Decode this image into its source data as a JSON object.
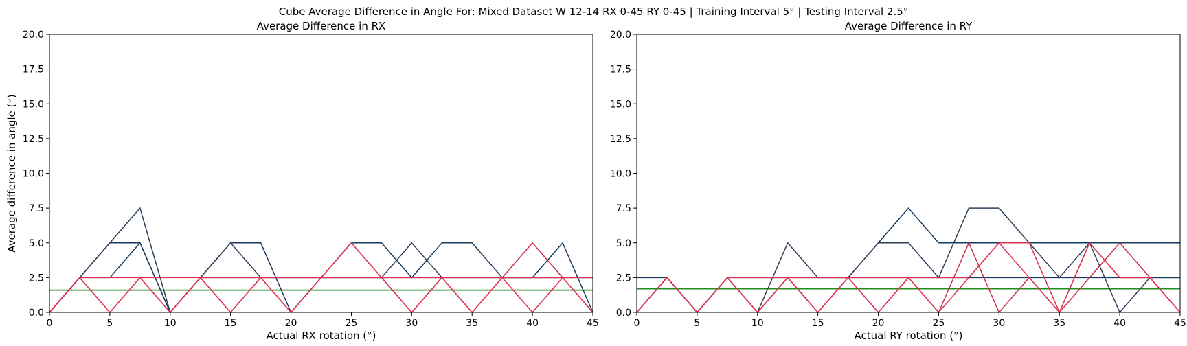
{
  "figure": {
    "suptitle": "Cube Average Difference in Angle For: Mixed Dataset W 12-14 RX 0-45 RY 0-45 | Training Interval 5° | Testing Interval 2.5°"
  },
  "colors": {
    "reference_line": "#228b22",
    "navy": "#17395c",
    "dark_slate": "#2c3e57",
    "red": "#e03050",
    "crimson": "#c72c48"
  },
  "chart_data": [
    {
      "type": "line",
      "title": "Average Difference in RX",
      "xlabel": "Actual RX rotation (°)",
      "ylabel": "Average difference in angle (°)",
      "xlim": [
        0,
        45
      ],
      "ylim": [
        0,
        20
      ],
      "x_ticks": [
        "0",
        "5",
        "10",
        "15",
        "20",
        "25",
        "30",
        "35",
        "40",
        "45"
      ],
      "y_ticks": [
        "0.0",
        "2.5",
        "5.0",
        "7.5",
        "10.0",
        "12.5",
        "15.0",
        "17.5",
        "20.0"
      ],
      "grid": false,
      "x": [
        0,
        2.5,
        5,
        7.5,
        10,
        12.5,
        15,
        17.5,
        20,
        22.5,
        25,
        27.5,
        30,
        32.5,
        35,
        37.5,
        40,
        42.5,
        45
      ],
      "reference_line": 1.6,
      "series": [
        {
          "color": "#17395c",
          "values": [
            0,
            2.5,
            5,
            5,
            0,
            2.5,
            5,
            5,
            0,
            2.5,
            5,
            5,
            2.5,
            5,
            5,
            2.5,
            2.5,
            5,
            0
          ]
        },
        {
          "color": "#2c3e57",
          "values": [
            0,
            2.5,
            5,
            7.5,
            0,
            2.5,
            5,
            2.5,
            2.5,
            2.5,
            2.5,
            2.5,
            5,
            2.5,
            2.5,
            2.5,
            2.5,
            2.5,
            2.5
          ]
        },
        {
          "color": "#17395c",
          "values": [
            0,
            2.5,
            2.5,
            5,
            0,
            2.5,
            2.5,
            2.5,
            2.5,
            2.5,
            2.5,
            2.5,
            2.5,
            2.5,
            2.5,
            2.5,
            2.5,
            2.5,
            2.5
          ]
        },
        {
          "color": "#e03050",
          "values": [
            0,
            2.5,
            2.5,
            2.5,
            2.5,
            2.5,
            2.5,
            2.5,
            2.5,
            2.5,
            2.5,
            2.5,
            2.5,
            2.5,
            2.5,
            2.5,
            2.5,
            2.5,
            2.5
          ]
        },
        {
          "color": "#c72c48",
          "values": [
            0,
            2.5,
            0,
            2.5,
            0,
            2.5,
            0,
            2.5,
            0,
            2.5,
            5,
            2.5,
            0,
            2.5,
            0,
            2.5,
            5,
            2.5,
            0
          ]
        },
        {
          "color": "#e03050",
          "values": [
            0,
            2.5,
            0,
            2.5,
            0,
            2.5,
            0,
            2.5,
            0,
            2.5,
            5,
            2.5,
            0,
            2.5,
            0,
            2.5,
            0,
            2.5,
            0
          ]
        }
      ]
    },
    {
      "type": "line",
      "title": "Average Difference in RY",
      "xlabel": "Actual RY rotation (°)",
      "ylabel": "",
      "xlim": [
        0,
        45
      ],
      "ylim": [
        0,
        20
      ],
      "x_ticks": [
        "0",
        "5",
        "10",
        "15",
        "20",
        "25",
        "30",
        "35",
        "40",
        "45"
      ],
      "y_ticks": [
        "0.0",
        "2.5",
        "5.0",
        "7.5",
        "10.0",
        "12.5",
        "15.0",
        "17.5",
        "20.0"
      ],
      "grid": false,
      "x": [
        0,
        2.5,
        5,
        7.5,
        10,
        12.5,
        15,
        17.5,
        20,
        22.5,
        25,
        27.5,
        30,
        32.5,
        35,
        37.5,
        40,
        42.5,
        45
      ],
      "reference_line": 1.7,
      "series": [
        {
          "color": "#17395c",
          "values": [
            2.5,
            2.5,
            0,
            2.5,
            0,
            2.5,
            0,
            2.5,
            5,
            7.5,
            5,
            5,
            5,
            5,
            5,
            5,
            5,
            5,
            5
          ]
        },
        {
          "color": "#2c3e57",
          "values": [
            0,
            2.5,
            0,
            2.5,
            0,
            5,
            2.5,
            2.5,
            5,
            5,
            2.5,
            7.5,
            7.5,
            5,
            2.5,
            5,
            0,
            2.5,
            2.5
          ]
        },
        {
          "color": "#17395c",
          "values": [
            0,
            2.5,
            0,
            2.5,
            2.5,
            2.5,
            2.5,
            2.5,
            2.5,
            2.5,
            2.5,
            2.5,
            2.5,
            2.5,
            2.5,
            2.5,
            2.5,
            2.5,
            2.5
          ]
        },
        {
          "color": "#e03050",
          "values": [
            0,
            2.5,
            0,
            2.5,
            2.5,
            2.5,
            2.5,
            2.5,
            2.5,
            2.5,
            2.5,
            2.5,
            5,
            5,
            0,
            5,
            2.5,
            2.5,
            0
          ]
        },
        {
          "color": "#c72c48",
          "values": [
            0,
            2.5,
            0,
            2.5,
            0,
            2.5,
            0,
            2.5,
            0,
            2.5,
            0,
            5,
            0,
            2.5,
            0,
            2.5,
            5,
            2.5,
            0
          ]
        },
        {
          "color": "#e03050",
          "values": [
            0,
            2.5,
            0,
            2.5,
            0,
            2.5,
            0,
            2.5,
            0,
            2.5,
            0,
            2.5,
            5,
            2.5,
            0,
            5,
            2.5,
            2.5,
            0
          ]
        }
      ]
    }
  ]
}
